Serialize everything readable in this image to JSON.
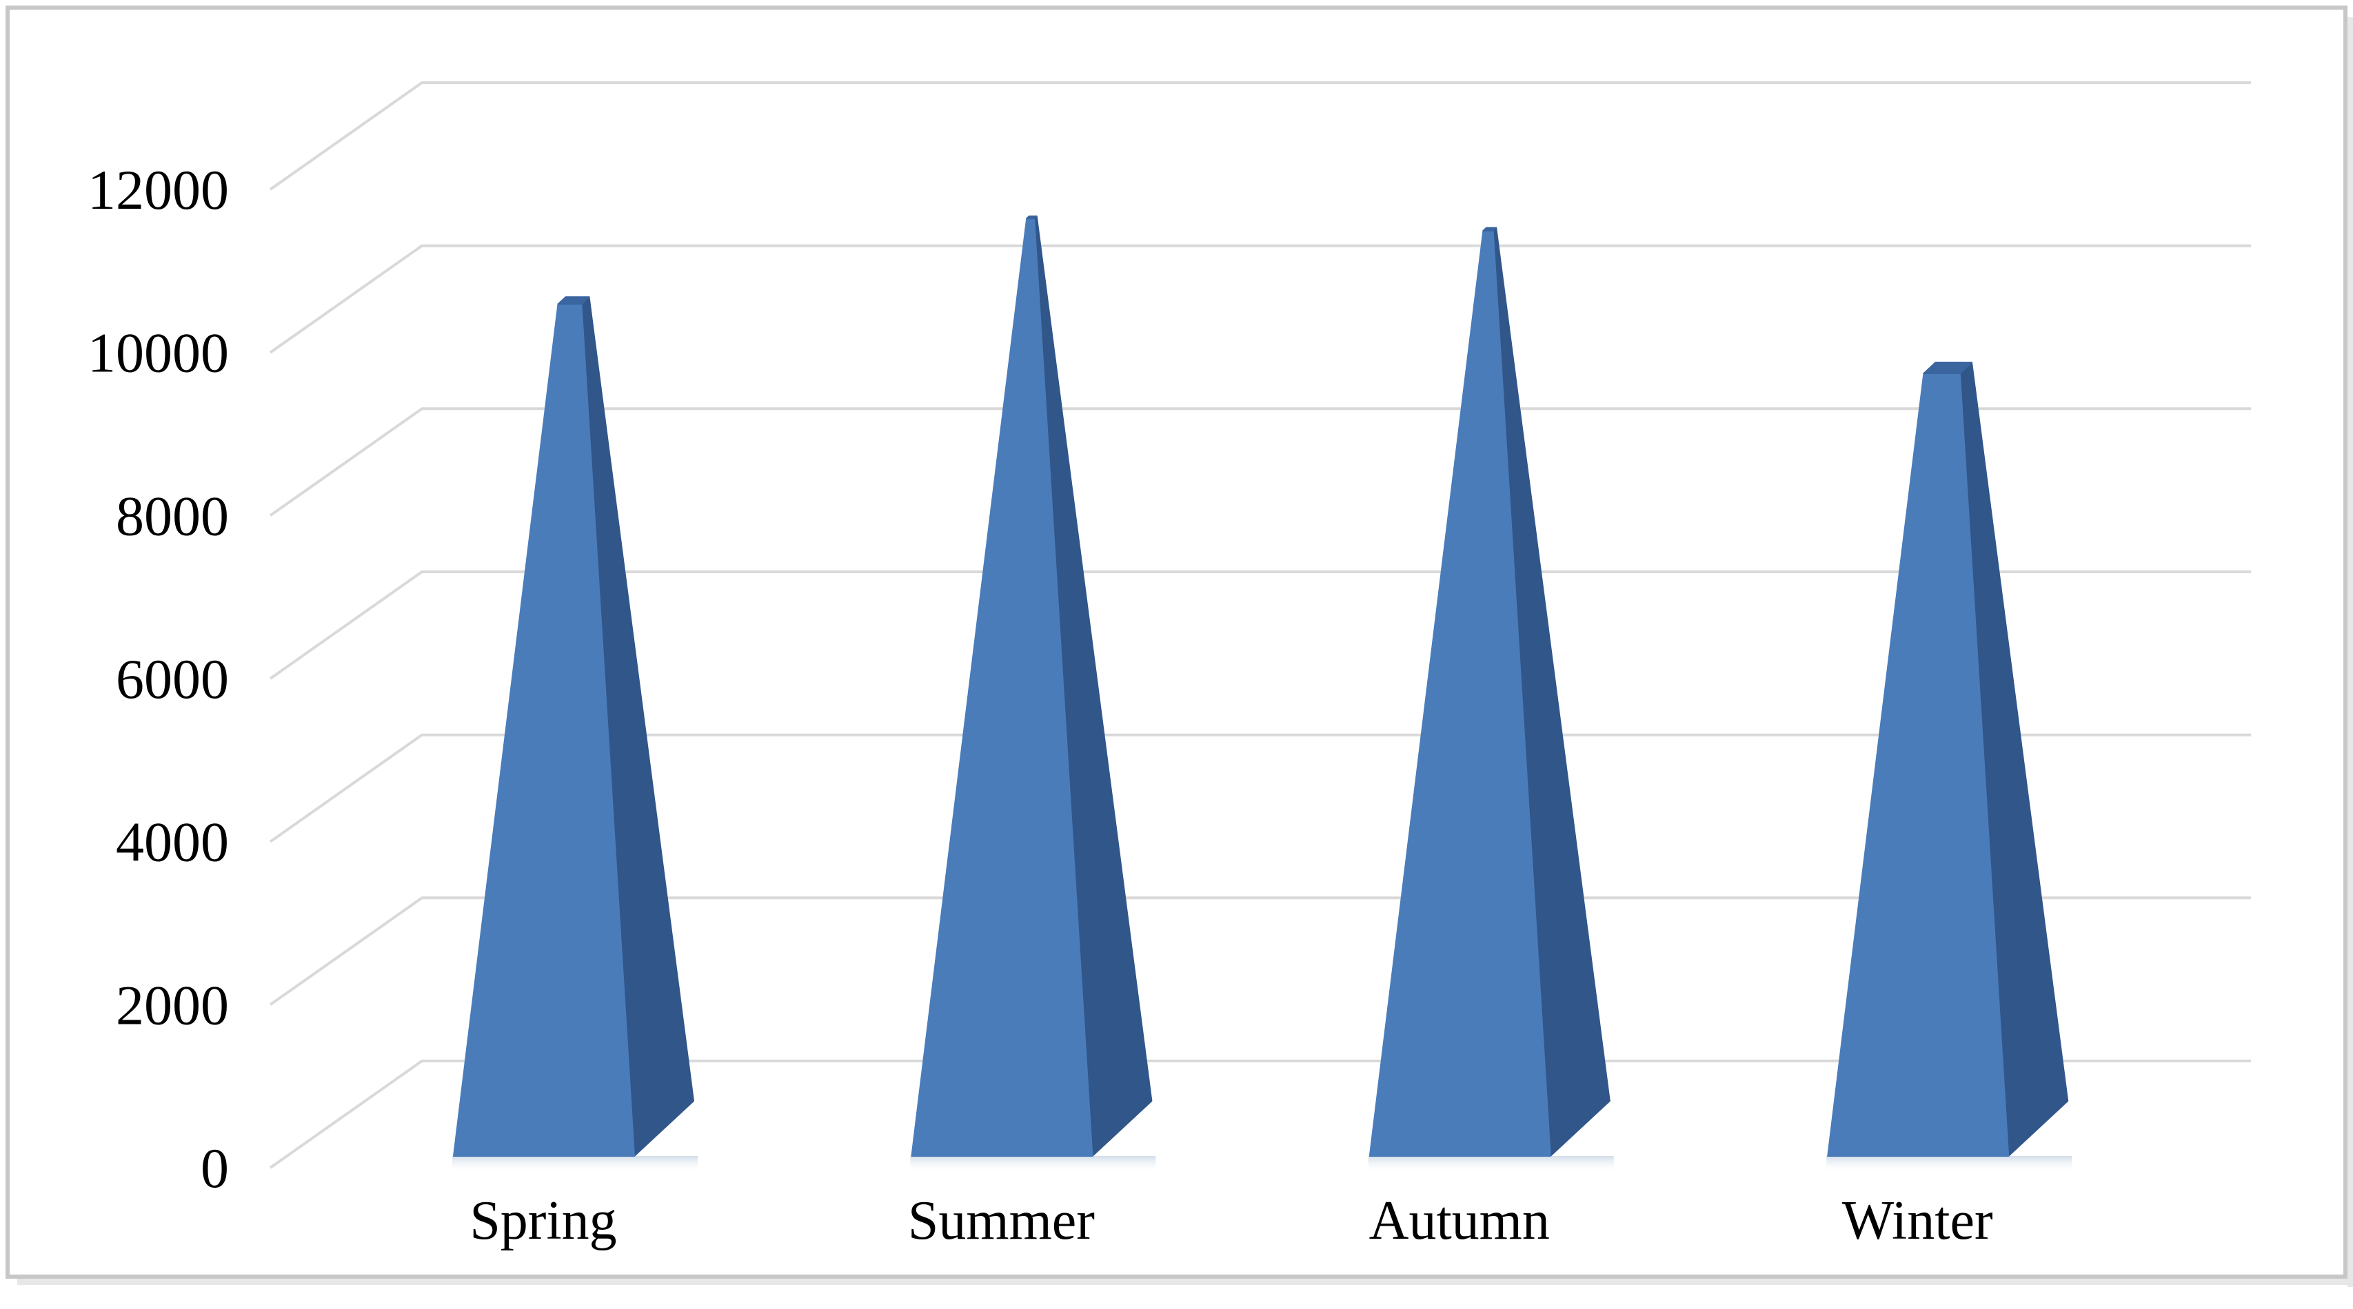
{
  "figure": {
    "background": "#ffffff",
    "frame_color": "#c7c7c7",
    "frame_shadow_color": "#e7e7e7"
  },
  "chart_data": {
    "type": "bar",
    "variant": "3d-pyramid",
    "title": "",
    "xlabel": "",
    "ylabel": "",
    "categories": [
      "Spring",
      "Summer",
      "Autumn",
      "Winter"
    ],
    "values": [
      10450,
      11500,
      11350,
      9600
    ],
    "ylim": [
      0,
      12000
    ],
    "y_step": 2000,
    "y_tick_labels": [
      "0",
      "2000",
      "4000",
      "6000",
      "8000",
      "10000",
      "12000"
    ],
    "grid": true,
    "legend": false,
    "colors": {
      "bar_front": "#4a7cba",
      "bar_side": "#30568a",
      "bar_top": "#3a659f",
      "bar_shadow": "#9bb3cf",
      "gridline": "#d9d9d9",
      "text": "#000000"
    }
  }
}
